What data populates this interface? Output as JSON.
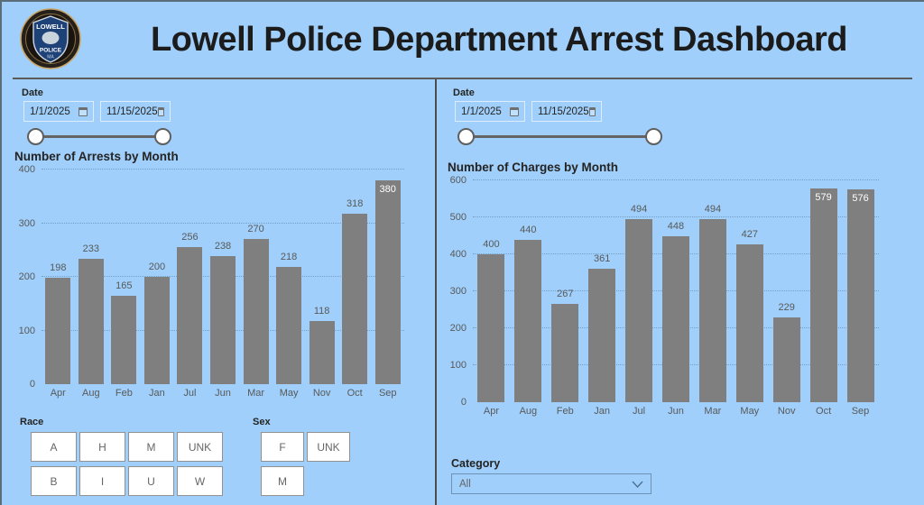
{
  "header": {
    "title": "Lowell Police Department Arrest Dashboard",
    "logo": {
      "name": "lowell-police-badge",
      "shield_top": "LOWELL",
      "shield_mid": "POLICE",
      "shield_bottom": "MA"
    }
  },
  "left_panel": {
    "date_filter": {
      "label": "Date",
      "start_value": "1/1/2025",
      "end_value": "11/15/2025"
    },
    "race_filter": {
      "label": "Race",
      "options": [
        "A",
        "H",
        "M",
        "UNK",
        "B",
        "I",
        "U",
        "W"
      ]
    },
    "sex_filter": {
      "label": "Sex",
      "options": [
        "F",
        "UNK",
        "M"
      ]
    }
  },
  "right_panel": {
    "date_filter": {
      "label": "Date",
      "start_value": "1/1/2025",
      "end_value": "11/15/2025"
    },
    "category_filter": {
      "label": "Category",
      "selected_value": "All"
    }
  },
  "chart_data": [
    {
      "type": "bar",
      "title": "Number of Arrests by Month",
      "categories": [
        "Apr",
        "Aug",
        "Feb",
        "Jan",
        "Jul",
        "Jun",
        "Mar",
        "May",
        "Nov",
        "Oct",
        "Sep"
      ],
      "values": [
        198,
        233,
        165,
        200,
        256,
        238,
        270,
        218,
        118,
        318,
        380
      ],
      "xlabel": "",
      "ylabel": "",
      "ylim": [
        0,
        400
      ],
      "ytick_step": 100,
      "grid": "dotted-horizontal",
      "legend": "none",
      "bar_color": "#7f7f7f",
      "data_labels": true
    },
    {
      "type": "bar",
      "title": "Number of Charges by Month",
      "categories": [
        "Apr",
        "Aug",
        "Feb",
        "Jan",
        "Jul",
        "Jun",
        "Mar",
        "May",
        "Nov",
        "Oct",
        "Sep"
      ],
      "values": [
        400,
        440,
        267,
        361,
        494,
        448,
        494,
        427,
        229,
        579,
        576
      ],
      "xlabel": "",
      "ylabel": "",
      "ylim": [
        0,
        600
      ],
      "ytick_step": 100,
      "grid": "dotted-horizontal",
      "legend": "none",
      "bar_color": "#7f7f7f",
      "data_labels": true
    }
  ],
  "colors": {
    "background": "#9fcffa",
    "bar_fill": "#7f7f7f",
    "axis_text": "#595959",
    "title_text": "#1c1c1c",
    "divider": "#4d4d4d",
    "button_bg": "#ffffff",
    "button_border": "#919191",
    "inside_label": "#ffffff"
  }
}
